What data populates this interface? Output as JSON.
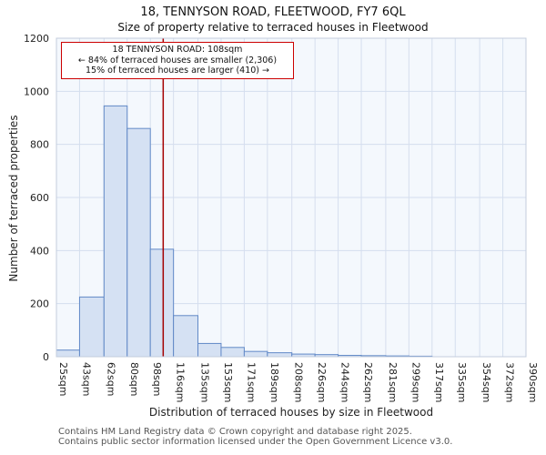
{
  "chart_data": {
    "type": "bar",
    "title": "18, TENNYSON ROAD, FLEETWOOD, FY7 6QL",
    "subtitle": "Size of property relative to terraced houses in Fleetwood",
    "xlabel": "Distribution of terraced houses by size in Fleetwood",
    "ylabel": "Number of terraced properties",
    "x_tick_labels": [
      "25sqm",
      "43sqm",
      "62sqm",
      "80sqm",
      "98sqm",
      "116sqm",
      "135sqm",
      "153sqm",
      "171sqm",
      "189sqm",
      "208sqm",
      "226sqm",
      "244sqm",
      "262sqm",
      "281sqm",
      "299sqm",
      "317sqm",
      "335sqm",
      "354sqm",
      "372sqm",
      "390sqm"
    ],
    "x_tick_values": [
      25,
      43,
      62,
      80,
      98,
      116,
      135,
      153,
      171,
      189,
      208,
      226,
      244,
      262,
      281,
      299,
      317,
      335,
      354,
      372,
      390
    ],
    "values": [
      25,
      225,
      945,
      860,
      405,
      155,
      50,
      35,
      20,
      15,
      10,
      8,
      5,
      4,
      3,
      2,
      0,
      0,
      0,
      0
    ],
    "y_ticks": [
      0,
      200,
      400,
      600,
      800,
      1000,
      1200
    ],
    "ylim": [
      0,
      1200
    ],
    "grid": true,
    "legend": false,
    "marker": {
      "value": 108,
      "label_line1": "18 TENNYSON ROAD: 108sqm",
      "label_line2": "← 84% of terraced houses are smaller (2,306)",
      "label_line3": "15% of terraced houses are larger (410) →",
      "line_color": "#a40000",
      "box_border_color": "#cc0000"
    },
    "colors": {
      "bar_fill": "#d5e1f3",
      "bar_stroke": "#6189c7",
      "grid": "#d5deee",
      "plot_bg": "#f4f8fd",
      "plot_border": "#c3cddd",
      "tick_text": "#222222"
    }
  },
  "footer": {
    "line1": "Contains HM Land Registry data © Crown copyright and database right 2025.",
    "line2": "Contains public sector information licensed under the Open Government Licence v3.0."
  }
}
